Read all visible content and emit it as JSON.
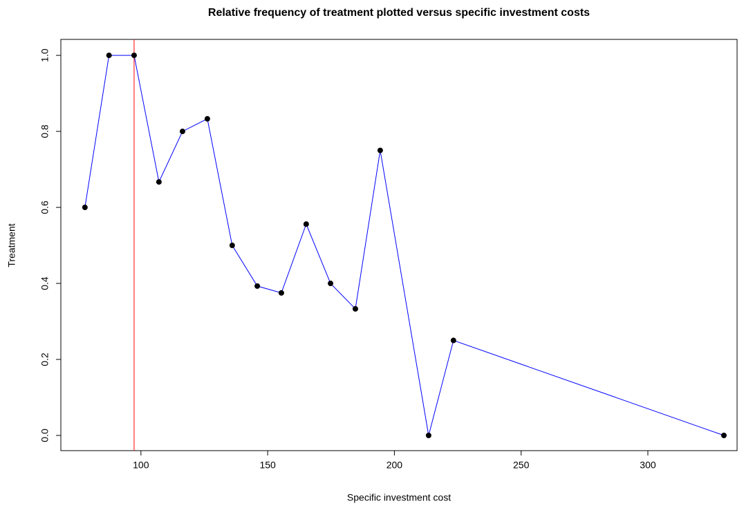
{
  "chart_data": {
    "type": "line",
    "title": "Relative frequency of treatment plotted versus specific investment costs",
    "x_label": "Specific investment cost",
    "y_label": "Treatment",
    "x": [
      77.9,
      87.4,
      97.3,
      107.1,
      116.4,
      126.2,
      136.0,
      145.9,
      155.4,
      165.2,
      174.8,
      184.6,
      194.4,
      213.5,
      223.3,
      330
    ],
    "values": [
      0.6,
      1.0,
      1.0,
      0.667,
      0.8,
      0.833,
      0.5,
      0.393,
      0.375,
      0.556,
      0.4,
      0.333,
      0.75,
      0,
      0.25,
      0
    ],
    "color": "#0000ff",
    "marker_color": "#000000",
    "vline": {
      "x": 97.3,
      "color": "#ff0000"
    },
    "xlim": [
      68.4,
      335.2
    ],
    "ylim": [
      -0.04,
      1.042
    ],
    "xticks": [
      100,
      150,
      200,
      250,
      300
    ],
    "yticks": [
      {
        "value": 0,
        "label": "0.0"
      },
      {
        "value": 0.2,
        "label": "0.2"
      },
      {
        "value": 0.4,
        "label": "0.4"
      },
      {
        "value": 0.6,
        "label": "0.6"
      },
      {
        "value": 0.8,
        "label": "0.8"
      },
      {
        "value": 1,
        "label": "1.0"
      }
    ]
  }
}
